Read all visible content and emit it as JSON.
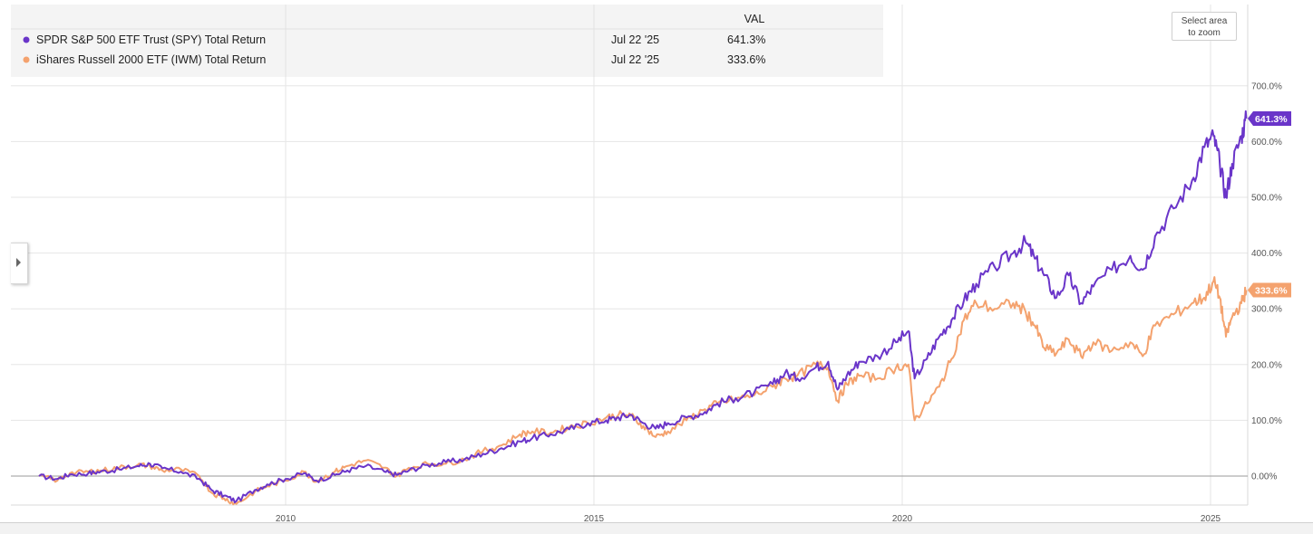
{
  "legend": {
    "header": "VAL",
    "rows": [
      {
        "name": "SPDR S&P 500 ETF Trust (SPY) Total Return",
        "date": "Jul 22 '25",
        "value": "641.3%",
        "color": "#6a35c9"
      },
      {
        "name": "iShares Russell 2000 ETF (IWM) Total Return",
        "date": "Jul 22 '25",
        "value": "333.6%",
        "color": "#f4a26e"
      }
    ]
  },
  "zoom_button": {
    "line1": "Select area",
    "line2": "to zoom"
  },
  "icons": {
    "side_toggle": "chevron-right-icon"
  },
  "chart_data": {
    "type": "line",
    "x_ticks": [
      2010,
      2015,
      2020,
      2025
    ],
    "y_ticks": [
      "0.00%",
      "100.0%",
      "200.0%",
      "300.0%",
      "400.0%",
      "500.0%",
      "600.0%",
      "700.0%"
    ],
    "xlim": [
      2005.95,
      2025.75
    ],
    "ylim": [
      -52,
      750
    ],
    "end_labels": [
      "641.3%",
      "333.6%"
    ],
    "series": [
      {
        "name": "SPDR S&P 500 ETF Trust (SPY) Total Return",
        "color": "#6a35c9",
        "points": [
          [
            2006.0,
            0
          ],
          [
            2006.3,
            -5
          ],
          [
            2006.5,
            3
          ],
          [
            2006.8,
            5
          ],
          [
            2007.0,
            8
          ],
          [
            2007.3,
            12
          ],
          [
            2007.6,
            18
          ],
          [
            2007.8,
            22
          ],
          [
            2008.0,
            14
          ],
          [
            2008.3,
            8
          ],
          [
            2008.6,
            -5
          ],
          [
            2008.8,
            -25
          ],
          [
            2009.0,
            -35
          ],
          [
            2009.2,
            -45
          ],
          [
            2009.5,
            -25
          ],
          [
            2009.7,
            -15
          ],
          [
            2010.0,
            -5
          ],
          [
            2010.3,
            5
          ],
          [
            2010.5,
            -8
          ],
          [
            2010.8,
            2
          ],
          [
            2011.0,
            10
          ],
          [
            2011.3,
            18
          ],
          [
            2011.6,
            8
          ],
          [
            2011.8,
            2
          ],
          [
            2012.0,
            10
          ],
          [
            2012.3,
            20
          ],
          [
            2012.6,
            25
          ],
          [
            2012.9,
            30
          ],
          [
            2013.2,
            40
          ],
          [
            2013.5,
            50
          ],
          [
            2013.8,
            62
          ],
          [
            2014.0,
            68
          ],
          [
            2014.3,
            75
          ],
          [
            2014.6,
            84
          ],
          [
            2014.9,
            95
          ],
          [
            2015.2,
            100
          ],
          [
            2015.4,
            105
          ],
          [
            2015.6,
            110
          ],
          [
            2015.8,
            95
          ],
          [
            2016.0,
            85
          ],
          [
            2016.2,
            95
          ],
          [
            2016.5,
            105
          ],
          [
            2016.8,
            115
          ],
          [
            2017.0,
            130
          ],
          [
            2017.3,
            140
          ],
          [
            2017.6,
            150
          ],
          [
            2017.9,
            165
          ],
          [
            2018.1,
            185
          ],
          [
            2018.3,
            175
          ],
          [
            2018.6,
            195
          ],
          [
            2018.8,
            205
          ],
          [
            2018.95,
            155
          ],
          [
            2019.1,
            180
          ],
          [
            2019.3,
            205
          ],
          [
            2019.6,
            215
          ],
          [
            2019.9,
            240
          ],
          [
            2020.1,
            260
          ],
          [
            2020.2,
            175
          ],
          [
            2020.4,
            210
          ],
          [
            2020.6,
            250
          ],
          [
            2020.8,
            280
          ],
          [
            2021.0,
            315
          ],
          [
            2021.2,
            345
          ],
          [
            2021.5,
            375
          ],
          [
            2021.8,
            400
          ],
          [
            2022.0,
            420
          ],
          [
            2022.15,
            390
          ],
          [
            2022.3,
            360
          ],
          [
            2022.5,
            320
          ],
          [
            2022.7,
            360
          ],
          [
            2022.9,
            310
          ],
          [
            2023.1,
            340
          ],
          [
            2023.4,
            370
          ],
          [
            2023.7,
            395
          ],
          [
            2023.9,
            370
          ],
          [
            2024.1,
            430
          ],
          [
            2024.4,
            480
          ],
          [
            2024.7,
            530
          ],
          [
            2024.9,
            590
          ],
          [
            2025.05,
            610
          ],
          [
            2025.15,
            560
          ],
          [
            2025.25,
            500
          ],
          [
            2025.35,
            560
          ],
          [
            2025.5,
            610
          ],
          [
            2025.58,
            641.3
          ]
        ]
      },
      {
        "name": "iShares Russell 2000 ETF (IWM) Total Return",
        "color": "#f4a26e",
        "points": [
          [
            2006.0,
            0
          ],
          [
            2006.3,
            -8
          ],
          [
            2006.5,
            5
          ],
          [
            2006.8,
            8
          ],
          [
            2007.0,
            10
          ],
          [
            2007.3,
            15
          ],
          [
            2007.6,
            20
          ],
          [
            2007.8,
            18
          ],
          [
            2008.0,
            10
          ],
          [
            2008.3,
            12
          ],
          [
            2008.6,
            0
          ],
          [
            2008.8,
            -30
          ],
          [
            2009.0,
            -40
          ],
          [
            2009.2,
            -50
          ],
          [
            2009.5,
            -28
          ],
          [
            2009.7,
            -18
          ],
          [
            2010.0,
            -8
          ],
          [
            2010.3,
            8
          ],
          [
            2010.5,
            -10
          ],
          [
            2010.8,
            8
          ],
          [
            2011.0,
            18
          ],
          [
            2011.3,
            28
          ],
          [
            2011.6,
            15
          ],
          [
            2011.8,
            0
          ],
          [
            2012.0,
            15
          ],
          [
            2012.3,
            22
          ],
          [
            2012.6,
            22
          ],
          [
            2012.9,
            30
          ],
          [
            2013.2,
            45
          ],
          [
            2013.5,
            55
          ],
          [
            2013.8,
            75
          ],
          [
            2014.0,
            80
          ],
          [
            2014.3,
            78
          ],
          [
            2014.6,
            88
          ],
          [
            2014.9,
            95
          ],
          [
            2015.2,
            105
          ],
          [
            2015.4,
            110
          ],
          [
            2015.6,
            108
          ],
          [
            2015.8,
            90
          ],
          [
            2016.0,
            70
          ],
          [
            2016.2,
            80
          ],
          [
            2016.5,
            100
          ],
          [
            2016.8,
            120
          ],
          [
            2017.0,
            130
          ],
          [
            2017.3,
            138
          ],
          [
            2017.6,
            145
          ],
          [
            2017.9,
            160
          ],
          [
            2018.1,
            175
          ],
          [
            2018.3,
            180
          ],
          [
            2018.6,
            200
          ],
          [
            2018.8,
            195
          ],
          [
            2018.95,
            135
          ],
          [
            2019.1,
            165
          ],
          [
            2019.3,
            180
          ],
          [
            2019.6,
            175
          ],
          [
            2019.9,
            195
          ],
          [
            2020.1,
            200
          ],
          [
            2020.2,
            100
          ],
          [
            2020.4,
            130
          ],
          [
            2020.6,
            160
          ],
          [
            2020.8,
            210
          ],
          [
            2021.0,
            280
          ],
          [
            2021.2,
            310
          ],
          [
            2021.5,
            300
          ],
          [
            2021.8,
            310
          ],
          [
            2022.0,
            295
          ],
          [
            2022.15,
            270
          ],
          [
            2022.3,
            230
          ],
          [
            2022.5,
            220
          ],
          [
            2022.7,
            245
          ],
          [
            2022.9,
            215
          ],
          [
            2023.1,
            240
          ],
          [
            2023.4,
            225
          ],
          [
            2023.7,
            240
          ],
          [
            2023.9,
            215
          ],
          [
            2024.1,
            270
          ],
          [
            2024.4,
            290
          ],
          [
            2024.7,
            310
          ],
          [
            2024.9,
            320
          ],
          [
            2025.05,
            350
          ],
          [
            2025.15,
            320
          ],
          [
            2025.25,
            250
          ],
          [
            2025.35,
            285
          ],
          [
            2025.5,
            310
          ],
          [
            2025.58,
            333.6
          ]
        ]
      }
    ]
  }
}
